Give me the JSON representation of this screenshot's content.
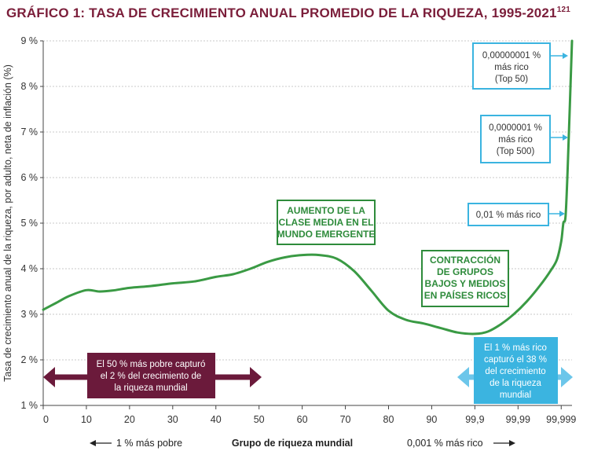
{
  "chart_data": {
    "type": "line",
    "title": "GRÁFICO 1: TASA DE CRECIMIENTO ANUAL PROMEDIO DE LA RIQUEZA, 1995-2021",
    "title_superscript": "121",
    "ylabel": "Tasa de crecimiento anual de la riqueza, por adulto, neta de inflación (%)",
    "xlabel": "Grupo de riqueza mundial",
    "x_left_note": "1 % más pobre",
    "x_right_note": "0,001 % más rico",
    "ylim": [
      1,
      9
    ],
    "y_ticks": [
      "1 %",
      "2 %",
      "3 %",
      "4 %",
      "5 %",
      "6 %",
      "7 %",
      "8 %",
      "9 %"
    ],
    "y_tick_values": [
      1,
      2,
      3,
      4,
      5,
      6,
      7,
      8,
      9
    ],
    "x_tick_labels": [
      "0",
      "10",
      "20",
      "30",
      "40",
      "50",
      "60",
      "70",
      "80",
      "90",
      "99,9",
      "99,99",
      "99,999"
    ],
    "x_tick_positions": [
      0,
      1,
      2,
      3,
      4,
      5,
      6,
      7,
      8,
      9,
      10,
      11,
      12
    ],
    "series": [
      {
        "name": "Tasa de crecimiento",
        "color": "#3a9a44",
        "x": [
          0,
          0.3,
          0.6,
          1.0,
          1.3,
          1.6,
          2.0,
          2.5,
          3.0,
          3.5,
          4.0,
          4.4,
          4.8,
          5.2,
          5.6,
          6.0,
          6.4,
          6.8,
          7.2,
          7.6,
          8.0,
          8.4,
          8.8,
          9.2,
          9.6,
          10.0,
          10.3,
          10.6,
          10.9,
          11.2,
          11.5,
          11.75,
          11.9,
          12.0,
          12.05,
          12.1,
          12.15,
          12.2,
          12.25
        ],
        "y": [
          3.1,
          3.25,
          3.4,
          3.53,
          3.5,
          3.52,
          3.58,
          3.62,
          3.68,
          3.72,
          3.82,
          3.88,
          4.0,
          4.15,
          4.25,
          4.3,
          4.3,
          4.22,
          3.95,
          3.52,
          3.08,
          2.88,
          2.8,
          2.7,
          2.6,
          2.57,
          2.62,
          2.78,
          3.0,
          3.28,
          3.62,
          3.95,
          4.2,
          4.6,
          5.0,
          5.15,
          6.2,
          7.6,
          9.0
        ]
      }
    ],
    "annotations": {
      "middle_class": [
        "AUMENTO DE LA",
        "CLASE MEDIA EN EL",
        "MUNDO EMERGENTE"
      ],
      "contraction": [
        "CONTRACCIÓN",
        "DE GRUPOS",
        "BAJOS Y MEDIOS",
        "EN PAÍSES RICOS"
      ],
      "top50": [
        "0,00000001 %",
        "más rico",
        "(Top 50)"
      ],
      "top500": [
        "0,0000001 %",
        "más rico",
        "(Top 500)"
      ],
      "top001": [
        "0,01 % más rico"
      ],
      "poorest50": [
        "El 50 % más pobre capturó",
        "el 2 % del crecimiento de",
        "la riqueza mundial"
      ],
      "richest1": [
        "El 1 % más rico",
        "capturó el 38 %",
        "del crecimiento",
        "de la riqueza",
        "mundial"
      ]
    },
    "colors": {
      "title": "#7b1e3a",
      "line": "#3a9a44",
      "green_box": "#2e8b3b",
      "blue_box": "#3bb4e0",
      "light_blue_fill": "#6cc6ea",
      "maroon": "#6b1a3b",
      "grid": "#c9c9c9"
    }
  }
}
